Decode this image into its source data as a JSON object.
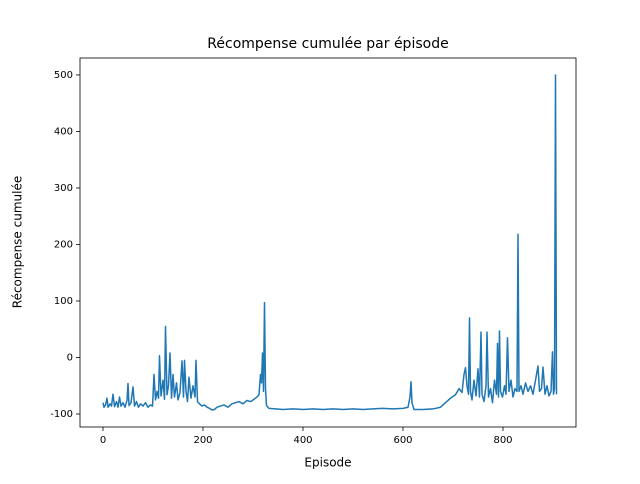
{
  "chart_data": {
    "type": "line",
    "title": "Récompense cumulée par épisode",
    "xlabel": "Episode",
    "ylabel": "Récompense cumulée",
    "color": "#1f77b4",
    "x": [
      0,
      2,
      5,
      8,
      10,
      14,
      17,
      20,
      23,
      27,
      30,
      33,
      36,
      40,
      44,
      48,
      50,
      52,
      56,
      60,
      63,
      67,
      71,
      75,
      80,
      85,
      90,
      95,
      99,
      102,
      105,
      108,
      111,
      113,
      116,
      120,
      123,
      125,
      128,
      131,
      134,
      137,
      140,
      143,
      147,
      150,
      154,
      158,
      161,
      163,
      166,
      169,
      172,
      176,
      180,
      184,
      186,
      189,
      193,
      198,
      203,
      208,
      213,
      218,
      223,
      228,
      235,
      242,
      250,
      258,
      265,
      272,
      280,
      288,
      295,
      302,
      308,
      312,
      315,
      317,
      319,
      321,
      323,
      325,
      327,
      332,
      345,
      360,
      380,
      400,
      420,
      440,
      460,
      480,
      500,
      520,
      540,
      560,
      580,
      600,
      610,
      614,
      616,
      618,
      622,
      640,
      660,
      675,
      685,
      695,
      705,
      712,
      718,
      722,
      725,
      728,
      731,
      733,
      735,
      738,
      742,
      746,
      750,
      753,
      756,
      758,
      762,
      766,
      768,
      771,
      775,
      779,
      783,
      787,
      789,
      791,
      793,
      795,
      799,
      803,
      806,
      809,
      812,
      816,
      820,
      824,
      828,
      830,
      832,
      836,
      840,
      845,
      850,
      855,
      860,
      865,
      870,
      873,
      877,
      880,
      884,
      888,
      892,
      896,
      899,
      901,
      903,
      905,
      907
    ],
    "values": [
      -80,
      -88,
      -84,
      -72,
      -88,
      -82,
      -86,
      -65,
      -87,
      -78,
      -88,
      -70,
      -86,
      -80,
      -88,
      -76,
      -46,
      -85,
      -80,
      -52,
      -86,
      -78,
      -88,
      -82,
      -86,
      -80,
      -88,
      -84,
      -86,
      -30,
      -75,
      -60,
      -72,
      3,
      -68,
      -40,
      -74,
      55,
      -66,
      -50,
      8,
      -72,
      -30,
      -70,
      -45,
      -75,
      -62,
      -6,
      -70,
      -5,
      -60,
      -78,
      -35,
      -72,
      -50,
      -70,
      -5,
      -78,
      -82,
      -86,
      -84,
      -88,
      -90,
      -93,
      -92,
      -88,
      -86,
      -84,
      -88,
      -82,
      -80,
      -78,
      -82,
      -76,
      -78,
      -74,
      -70,
      -66,
      -30,
      -45,
      8,
      -60,
      97,
      -55,
      -85,
      -90,
      -91,
      -92,
      -91,
      -92,
      -91,
      -92,
      -91,
      -92,
      -91,
      -92,
      -91,
      -90,
      -91,
      -90,
      -88,
      -70,
      -43,
      -80,
      -92,
      -92,
      -91,
      -88,
      -80,
      -72,
      -66,
      -55,
      -62,
      -30,
      -18,
      -50,
      -65,
      70,
      -60,
      -75,
      -40,
      -68,
      -20,
      -70,
      45,
      -65,
      -78,
      -50,
      45,
      -70,
      -55,
      -80,
      -40,
      -65,
      25,
      -70,
      47,
      -60,
      -70,
      -50,
      -65,
      35,
      -60,
      -40,
      -70,
      -55,
      -60,
      218,
      -60,
      -50,
      -65,
      -45,
      -60,
      -50,
      -65,
      -40,
      -15,
      -60,
      -55,
      -17,
      -65,
      -50,
      -68,
      -60,
      10,
      -65,
      -55,
      500,
      -65
    ],
    "xlim": [
      -46,
      946
    ],
    "ylim": [
      -123,
      530
    ],
    "xticks": [
      0,
      200,
      400,
      600,
      800
    ],
    "yticks": [
      -100,
      0,
      100,
      200,
      300,
      400,
      500
    ]
  }
}
